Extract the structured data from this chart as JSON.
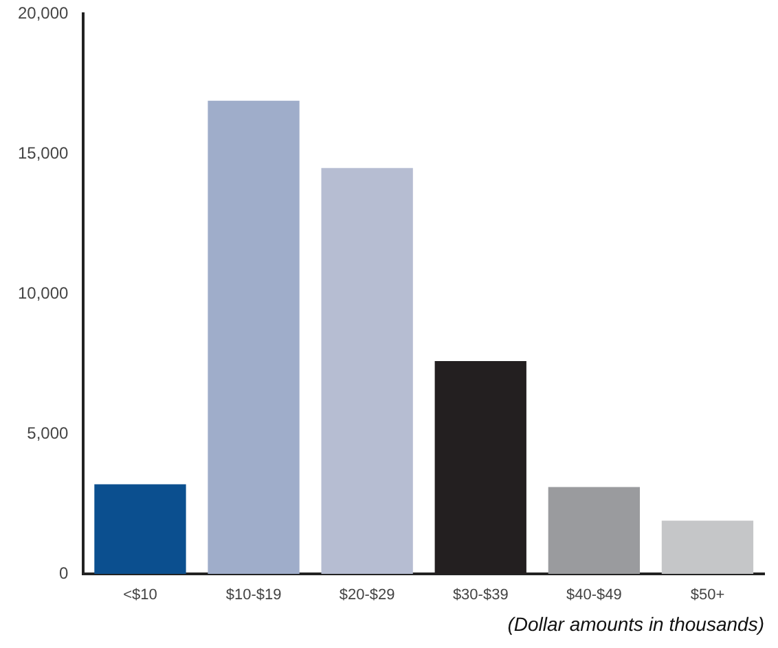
{
  "chart_data": {
    "type": "bar",
    "xlabel": "(Dollar amounts in thousands)",
    "categories": [
      "<$10",
      "$10-$19",
      "$20-$29",
      "$30-$39",
      "$40-$49",
      "$50+"
    ],
    "values": [
      3200,
      16900,
      14500,
      7600,
      3100,
      1900
    ],
    "colors": [
      "#0b4f8f",
      "#9fadca",
      "#b6bdd2",
      "#231f20",
      "#9a9b9e",
      "#c5c6c8"
    ],
    "ylim": [
      0,
      20000
    ],
    "yticks": [
      0,
      {
        "value": 5000,
        "label": "5,000"
      },
      {
        "value": 10000,
        "label": "10,000"
      },
      {
        "value": 15000,
        "label": "15,000"
      },
      {
        "value": 20000,
        "label": "20,000"
      }
    ],
    "grid": false,
    "legend": false
  }
}
